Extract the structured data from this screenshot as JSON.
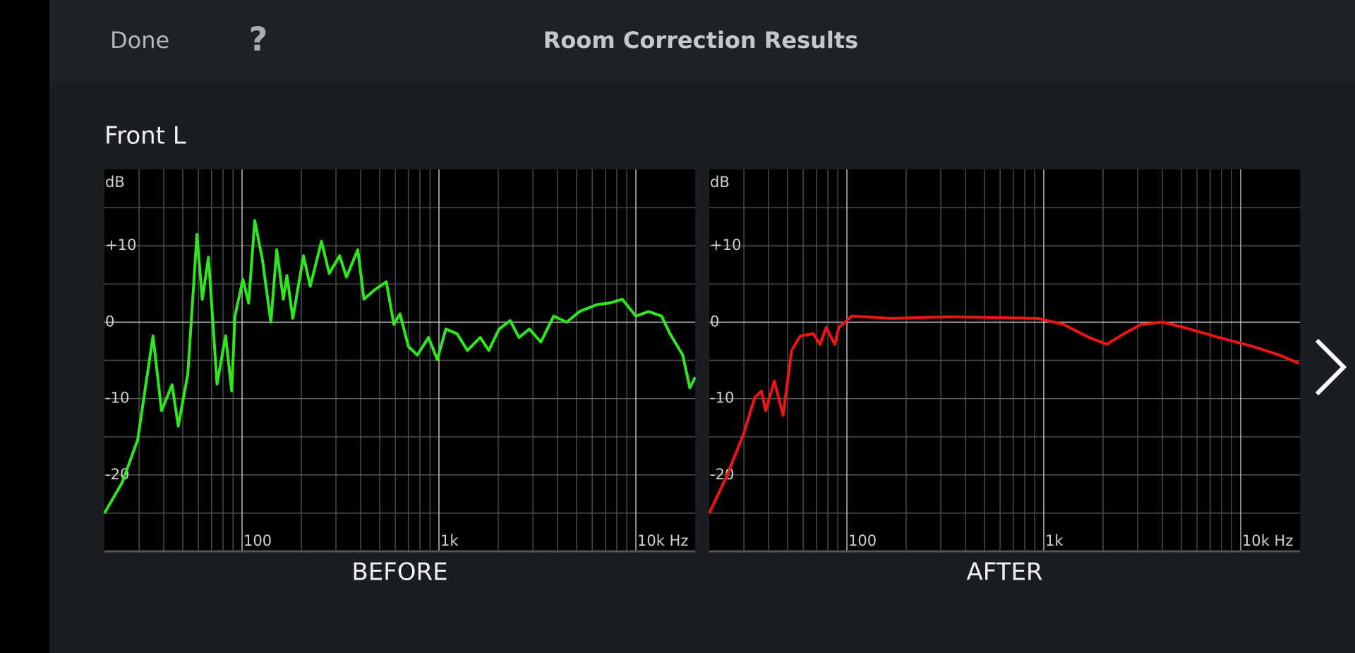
{
  "header": {
    "done": "Done",
    "help": "?",
    "title": "Room Correction Results"
  },
  "section_title": "Front L",
  "chart_data": [
    {
      "type": "line",
      "title": "BEFORE",
      "y_label": "dB",
      "xscale": "log",
      "xlim": [
        20,
        20000
      ],
      "ylim": [
        -30,
        20
      ],
      "xticks": [
        {
          "value": 100,
          "label": "100"
        },
        {
          "value": 1000,
          "label": "1k"
        },
        {
          "value": 10000,
          "label": "10k Hz"
        }
      ],
      "yticks": [
        {
          "value": 10,
          "label": "+10"
        },
        0,
        -10,
        -20
      ],
      "xminor": [
        30,
        40,
        50,
        60,
        70,
        80,
        90,
        200,
        300,
        400,
        500,
        600,
        700,
        800,
        900,
        2000,
        3000,
        4000,
        5000,
        6000,
        7000,
        8000,
        9000
      ],
      "yminor": [
        15,
        5,
        -5,
        -15,
        -25
      ],
      "grid": true,
      "series": [
        {
          "color": "#2ee81e",
          "x": [
            20,
            24.6,
            29.5,
            35.3,
            39,
            44.1,
            47.4,
            53,
            59,
            62.8,
            67.5,
            74.6,
            82.5,
            88.6,
            92,
            101,
            108,
            116,
            127,
            140,
            150,
            162,
            169,
            181,
            205,
            222,
            253,
            277,
            313,
            339,
            387,
            416,
            469,
            540,
            590,
            634,
            700,
            776,
            885,
            980,
            1084,
            1234,
            1395,
            1620,
            1790,
            2020,
            2300,
            2550,
            2880,
            3290,
            3830,
            4450,
            5170,
            6330,
            7350,
            8530,
            10000,
            11600,
            13500,
            14900,
            17300,
            18800,
            20000
          ],
          "values": [
            -25,
            -21,
            -15.4,
            -1.8,
            -11.6,
            -8.2,
            -13.6,
            -6.8,
            11.5,
            3,
            8.5,
            -8.1,
            -1.8,
            -9,
            0.8,
            5.6,
            2.5,
            13.3,
            8.1,
            0,
            9.5,
            3,
            6.1,
            0.5,
            8.7,
            4.7,
            10.6,
            6.4,
            8.7,
            5.9,
            9.5,
            3,
            4.2,
            5.3,
            -0.3,
            1.1,
            -3.2,
            -4.3,
            -2,
            -4.9,
            -0.9,
            -1.5,
            -3.7,
            -2,
            -3.7,
            -0.9,
            0.2,
            -2,
            -0.9,
            -2.6,
            0.8,
            0,
            1.4,
            2.3,
            2.5,
            3,
            0.8,
            1.4,
            0.8,
            -1.5,
            -4.3,
            -8.6,
            -7.2
          ]
        }
      ]
    },
    {
      "type": "line",
      "title": "AFTER",
      "y_label": "dB",
      "xscale": "log",
      "xlim": [
        20,
        20000
      ],
      "ylim": [
        -30,
        20
      ],
      "xticks": [
        {
          "value": 100,
          "label": "100"
        },
        {
          "value": 1000,
          "label": "1k"
        },
        {
          "value": 10000,
          "label": "10k Hz"
        }
      ],
      "yticks": [
        {
          "value": 10,
          "label": "+10"
        },
        0,
        -10,
        -20
      ],
      "xminor": [
        30,
        40,
        50,
        60,
        70,
        80,
        90,
        200,
        300,
        400,
        500,
        600,
        700,
        800,
        900,
        2000,
        3000,
        4000,
        5000,
        6000,
        7000,
        8000,
        9000
      ],
      "yminor": [
        15,
        5,
        -5,
        -15,
        -25
      ],
      "grid": true,
      "series": [
        {
          "color": "#f01414",
          "x": [
            20,
            24.6,
            30,
            34,
            36.8,
            38.7,
            42.8,
            47.4,
            52.4,
            58,
            67.5,
            73,
            78.5,
            86.8,
            91,
            106,
            167,
            339,
            933,
            1260,
            1700,
            2090,
            2560,
            3120,
            4020,
            5170,
            7740,
            11600,
            15700,
            19800
          ],
          "values": [
            -25,
            -20.1,
            -14.5,
            -9.9,
            -9,
            -11.6,
            -7.7,
            -12.2,
            -3.7,
            -1.8,
            -1.5,
            -2.9,
            -0.7,
            -2.9,
            -0.7,
            0.8,
            0.5,
            0.7,
            0.5,
            -0.3,
            -2,
            -2.9,
            -1.5,
            -0.3,
            0,
            -0.7,
            -2,
            -3.2,
            -4.3,
            -5.4
          ]
        }
      ]
    }
  ]
}
